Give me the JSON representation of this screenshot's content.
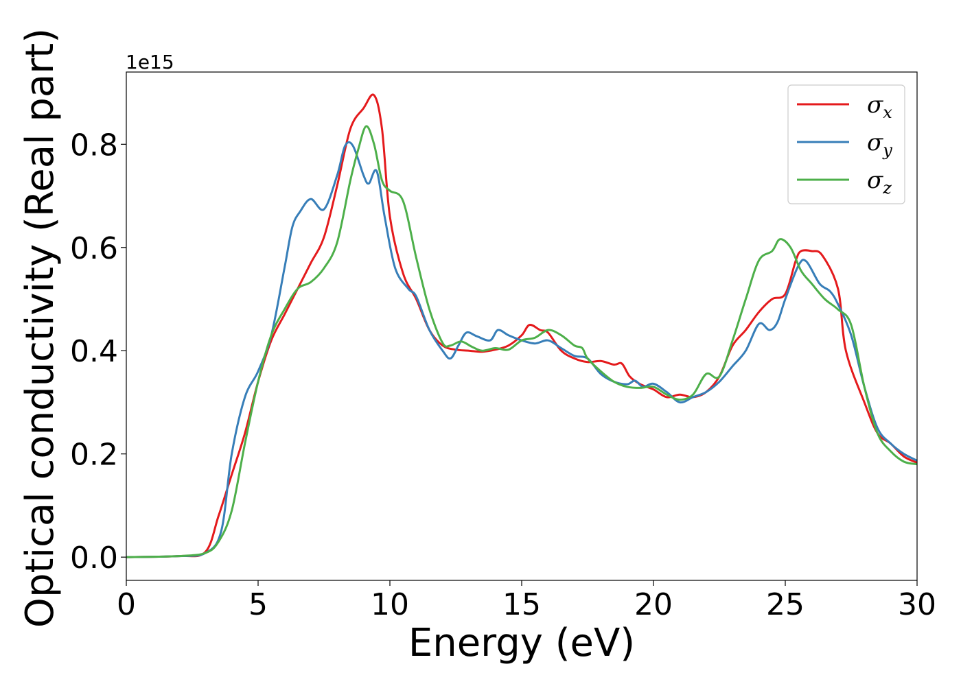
{
  "chart_data": {
    "type": "line",
    "xlabel": "Energy (eV)",
    "ylabel": "Optical conductivity (Real part)",
    "y_offset_label": "1e15",
    "xlim": [
      0,
      30
    ],
    "ylim": [
      -0.045,
      0.94
    ],
    "x_ticks": [
      0,
      5,
      10,
      15,
      20,
      25,
      30
    ],
    "x_tick_labels": [
      "0",
      "5",
      "10",
      "15",
      "20",
      "25",
      "30"
    ],
    "y_ticks": [
      0.0,
      0.2,
      0.4,
      0.6,
      0.8
    ],
    "y_tick_labels": [
      "0.0",
      "0.2",
      "0.4",
      "0.6",
      "0.8"
    ],
    "grid": false,
    "legend_position": "top-right",
    "series": [
      {
        "name": "σx",
        "legend_base": "σ",
        "legend_sub": "x",
        "color": "#e41a1c",
        "points": [
          [
            0,
            0
          ],
          [
            2,
            0.002
          ],
          [
            3,
            0.01
          ],
          [
            3.5,
            0.08
          ],
          [
            4,
            0.16
          ],
          [
            4.5,
            0.24
          ],
          [
            5,
            0.34
          ],
          [
            5.5,
            0.42
          ],
          [
            6,
            0.47
          ],
          [
            6.5,
            0.52
          ],
          [
            7,
            0.57
          ],
          [
            7.5,
            0.62
          ],
          [
            8,
            0.72
          ],
          [
            8.5,
            0.83
          ],
          [
            9.0,
            0.87
          ],
          [
            9.4,
            0.895
          ],
          [
            9.7,
            0.83
          ],
          [
            10,
            0.66
          ],
          [
            10.5,
            0.55
          ],
          [
            11,
            0.5
          ],
          [
            11.5,
            0.44
          ],
          [
            12,
            0.41
          ],
          [
            12.5,
            0.402
          ],
          [
            13,
            0.4
          ],
          [
            13.5,
            0.398
          ],
          [
            14,
            0.402
          ],
          [
            14.5,
            0.41
          ],
          [
            15,
            0.43
          ],
          [
            15.3,
            0.45
          ],
          [
            15.7,
            0.44
          ],
          [
            16,
            0.435
          ],
          [
            16.5,
            0.4
          ],
          [
            17,
            0.385
          ],
          [
            17.5,
            0.378
          ],
          [
            18,
            0.38
          ],
          [
            18.5,
            0.373
          ],
          [
            18.8,
            0.375
          ],
          [
            19.1,
            0.35
          ],
          [
            19.5,
            0.335
          ],
          [
            20,
            0.325
          ],
          [
            20.5,
            0.31
          ],
          [
            21,
            0.315
          ],
          [
            21.5,
            0.31
          ],
          [
            22,
            0.32
          ],
          [
            22.5,
            0.35
          ],
          [
            23,
            0.41
          ],
          [
            23.5,
            0.44
          ],
          [
            24,
            0.475
          ],
          [
            24.5,
            0.5
          ],
          [
            25,
            0.51
          ],
          [
            25.4,
            0.575
          ],
          [
            25.6,
            0.593
          ],
          [
            26,
            0.593
          ],
          [
            26.4,
            0.585
          ],
          [
            27,
            0.52
          ],
          [
            27.3,
            0.4
          ],
          [
            28,
            0.3
          ],
          [
            28.5,
            0.24
          ],
          [
            29,
            0.22
          ],
          [
            29.5,
            0.195
          ],
          [
            30,
            0.183
          ]
        ]
      },
      {
        "name": "σy",
        "legend_base": "σ",
        "legend_sub": "y",
        "color": "#377eb8",
        "points": [
          [
            0,
            0
          ],
          [
            2,
            0.002
          ],
          [
            3,
            0.008
          ],
          [
            3.6,
            0.05
          ],
          [
            4,
            0.2
          ],
          [
            4.5,
            0.31
          ],
          [
            5,
            0.36
          ],
          [
            5.5,
            0.43
          ],
          [
            6,
            0.56
          ],
          [
            6.3,
            0.64
          ],
          [
            6.6,
            0.67
          ],
          [
            7,
            0.694
          ],
          [
            7.5,
            0.674
          ],
          [
            8,
            0.74
          ],
          [
            8.3,
            0.797
          ],
          [
            8.6,
            0.797
          ],
          [
            9.0,
            0.74
          ],
          [
            9.2,
            0.724
          ],
          [
            9.5,
            0.748
          ],
          [
            9.8,
            0.66
          ],
          [
            10.2,
            0.56
          ],
          [
            10.7,
            0.52
          ],
          [
            11,
            0.505
          ],
          [
            11.5,
            0.44
          ],
          [
            12,
            0.4
          ],
          [
            12.3,
            0.385
          ],
          [
            12.6,
            0.41
          ],
          [
            12.9,
            0.435
          ],
          [
            13.3,
            0.428
          ],
          [
            13.8,
            0.42
          ],
          [
            14.1,
            0.44
          ],
          [
            14.5,
            0.43
          ],
          [
            15,
            0.42
          ],
          [
            15.5,
            0.414
          ],
          [
            16,
            0.42
          ],
          [
            16.5,
            0.405
          ],
          [
            17,
            0.39
          ],
          [
            17.5,
            0.385
          ],
          [
            18,
            0.355
          ],
          [
            18.5,
            0.34
          ],
          [
            19,
            0.335
          ],
          [
            19.3,
            0.342
          ],
          [
            19.6,
            0.33
          ],
          [
            20,
            0.336
          ],
          [
            20.5,
            0.32
          ],
          [
            21,
            0.3
          ],
          [
            21.5,
            0.31
          ],
          [
            22,
            0.32
          ],
          [
            22.5,
            0.34
          ],
          [
            23,
            0.37
          ],
          [
            23.5,
            0.4
          ],
          [
            24,
            0.452
          ],
          [
            24.4,
            0.44
          ],
          [
            24.7,
            0.455
          ],
          [
            25,
            0.5
          ],
          [
            25.5,
            0.565
          ],
          [
            25.8,
            0.573
          ],
          [
            26.3,
            0.53
          ],
          [
            26.7,
            0.515
          ],
          [
            27,
            0.49
          ],
          [
            27.5,
            0.43
          ],
          [
            28,
            0.33
          ],
          [
            28.5,
            0.25
          ],
          [
            29,
            0.22
          ],
          [
            29.5,
            0.2
          ],
          [
            30,
            0.187
          ]
        ]
      },
      {
        "name": "σz",
        "legend_base": "σ",
        "legend_sub": "z",
        "color": "#4daf4a",
        "points": [
          [
            0,
            0
          ],
          [
            2,
            0.002
          ],
          [
            3,
            0.008
          ],
          [
            3.5,
            0.03
          ],
          [
            4,
            0.09
          ],
          [
            4.5,
            0.22
          ],
          [
            5,
            0.34
          ],
          [
            5.5,
            0.43
          ],
          [
            6,
            0.48
          ],
          [
            6.5,
            0.52
          ],
          [
            7,
            0.533
          ],
          [
            7.5,
            0.56
          ],
          [
            8,
            0.61
          ],
          [
            8.5,
            0.73
          ],
          [
            8.8,
            0.79
          ],
          [
            9.1,
            0.835
          ],
          [
            9.4,
            0.8
          ],
          [
            9.7,
            0.73
          ],
          [
            10,
            0.71
          ],
          [
            10.5,
            0.69
          ],
          [
            11,
            0.58
          ],
          [
            11.5,
            0.48
          ],
          [
            12,
            0.415
          ],
          [
            12.3,
            0.41
          ],
          [
            12.7,
            0.418
          ],
          [
            13.1,
            0.408
          ],
          [
            13.5,
            0.4
          ],
          [
            14,
            0.405
          ],
          [
            14.5,
            0.402
          ],
          [
            15,
            0.42
          ],
          [
            15.5,
            0.425
          ],
          [
            16,
            0.44
          ],
          [
            16.5,
            0.43
          ],
          [
            17,
            0.41
          ],
          [
            17.3,
            0.405
          ],
          [
            17.5,
            0.385
          ],
          [
            18,
            0.36
          ],
          [
            18.5,
            0.34
          ],
          [
            19,
            0.33
          ],
          [
            19.5,
            0.328
          ],
          [
            20,
            0.33
          ],
          [
            20.5,
            0.315
          ],
          [
            21,
            0.305
          ],
          [
            21.5,
            0.315
          ],
          [
            22,
            0.355
          ],
          [
            22.5,
            0.35
          ],
          [
            23,
            0.42
          ],
          [
            23.5,
            0.5
          ],
          [
            24,
            0.575
          ],
          [
            24.5,
            0.593
          ],
          [
            24.8,
            0.616
          ],
          [
            25.2,
            0.6
          ],
          [
            25.6,
            0.555
          ],
          [
            26,
            0.53
          ],
          [
            26.5,
            0.5
          ],
          [
            27,
            0.48
          ],
          [
            27.5,
            0.45
          ],
          [
            28,
            0.33
          ],
          [
            28.5,
            0.24
          ],
          [
            29,
            0.205
          ],
          [
            29.5,
            0.185
          ],
          [
            30,
            0.18
          ]
        ]
      }
    ]
  }
}
